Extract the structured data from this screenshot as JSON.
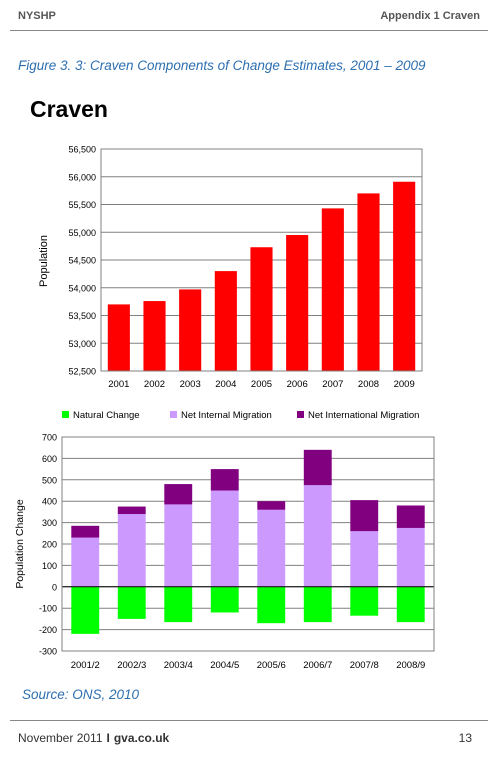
{
  "header": {
    "left": "NYSHP",
    "right": "Appendix 1 Craven"
  },
  "figure_caption": "Figure 3.  3: Craven Components of Change Estimates, 2001 – 2009",
  "source": "Source: ONS, 2010",
  "footer": {
    "date": "November 2011",
    "separator": "I",
    "site": "gva.co.uk",
    "page": "13"
  },
  "chart_data": [
    {
      "type": "bar",
      "title": "Craven",
      "ylabel": "Population",
      "xlabel": "",
      "categories": [
        "2001",
        "2002",
        "2003",
        "2004",
        "2005",
        "2006",
        "2007",
        "2008",
        "2009"
      ],
      "values": [
        53700,
        53760,
        53970,
        54300,
        54730,
        54950,
        55430,
        55700,
        55910
      ],
      "ylim": [
        52500,
        56500
      ],
      "ytick_step": 500,
      "grid": true,
      "colors": {
        "bar": "#ff0000"
      }
    },
    {
      "type": "bar",
      "stacked": true,
      "title": "",
      "ylabel": "Population Change",
      "xlabel": "",
      "categories": [
        "2001/2",
        "2002/3",
        "2003/4",
        "2004/5",
        "2005/6",
        "2006/7",
        "2007/8",
        "2008/9"
      ],
      "series": [
        {
          "name": "Natural Change",
          "color": "#00ff00",
          "values": [
            -220,
            -150,
            -165,
            -120,
            -170,
            -165,
            -135,
            -165
          ]
        },
        {
          "name": "Net Internal Migration",
          "color": "#cc99ff",
          "values": [
            230,
            340,
            385,
            450,
            360,
            475,
            260,
            275
          ]
        },
        {
          "name": "Net International Migration",
          "color": "#800080",
          "values": [
            55,
            35,
            95,
            100,
            40,
            165,
            145,
            105
          ]
        }
      ],
      "ylim": [
        -300,
        700
      ],
      "ytick_step": 100,
      "grid": true,
      "legend": "top"
    }
  ]
}
